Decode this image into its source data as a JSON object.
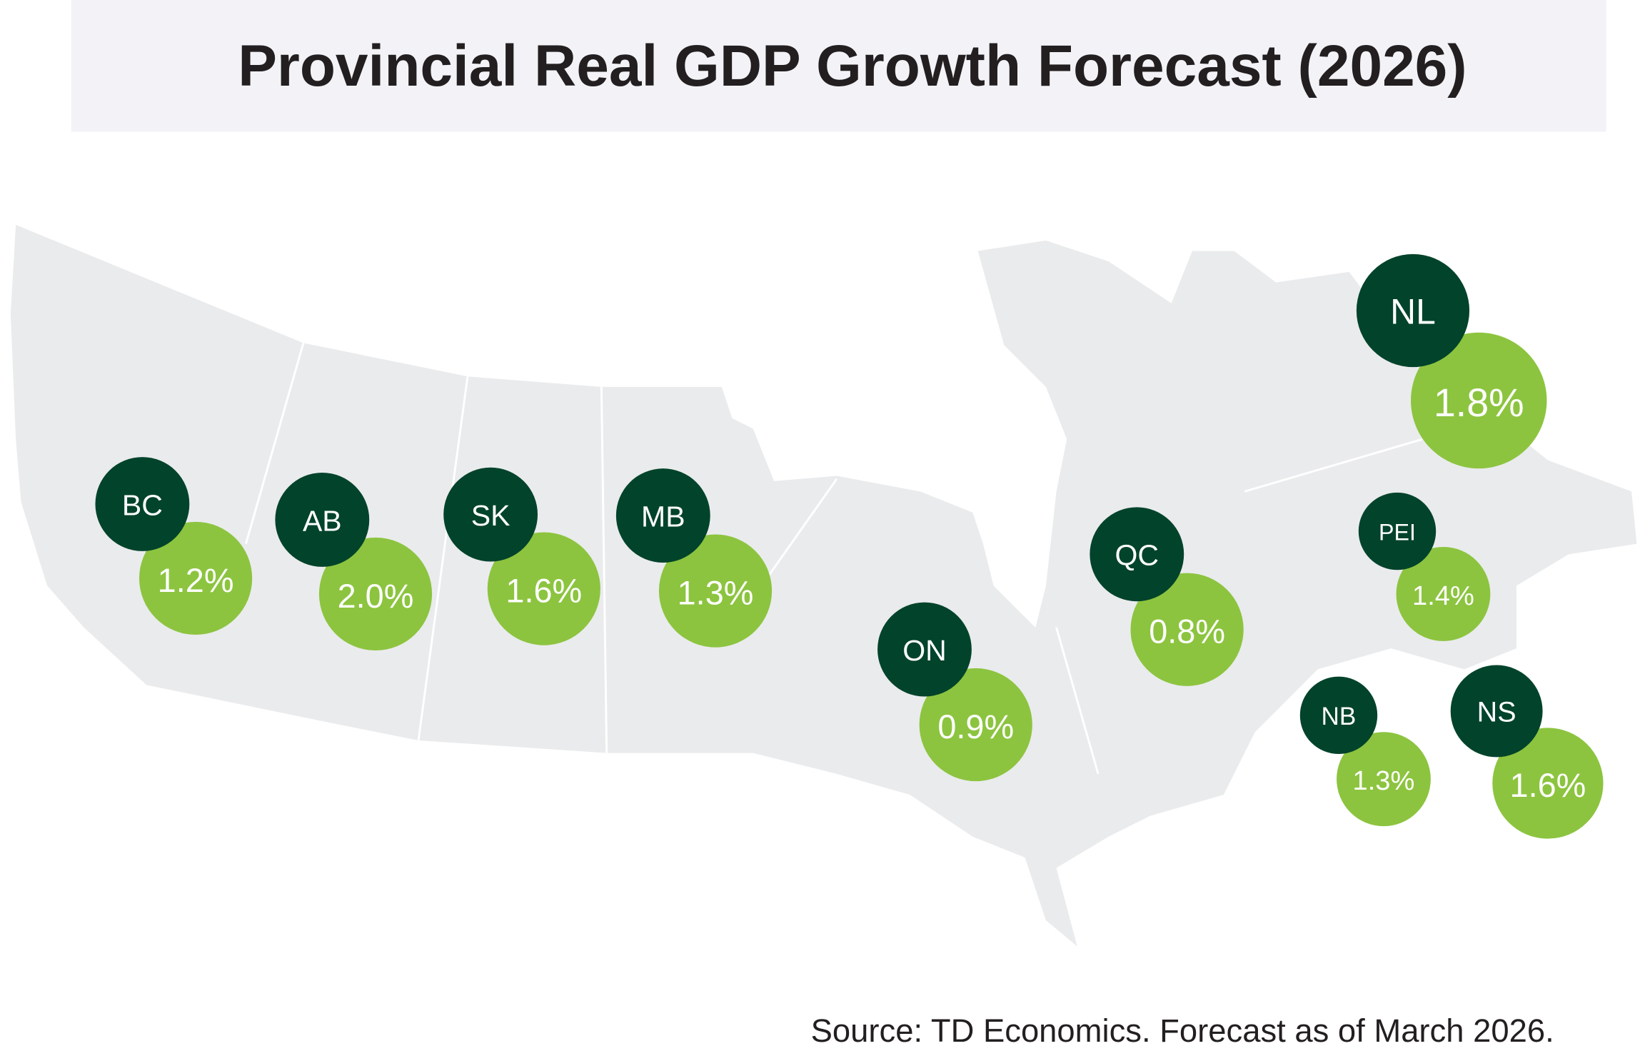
{
  "title": "Provincial Real GDP Growth Forecast (2026)",
  "source": "Source: TD Economics. Forecast as of March 2026.",
  "colors": {
    "province_badge": "#02432B",
    "growth_badge": "#8CC43F",
    "land": "#EAEBED",
    "title_bar": "#F3F3F7"
  },
  "provinces": [
    {
      "code": "BC",
      "growth": "1.2%"
    },
    {
      "code": "AB",
      "growth": "2.0%"
    },
    {
      "code": "SK",
      "growth": "1.6%"
    },
    {
      "code": "MB",
      "growth": "1.3%"
    },
    {
      "code": "ON",
      "growth": "0.9%"
    },
    {
      "code": "QC",
      "growth": "0.8%"
    },
    {
      "code": "NL",
      "growth": "1.8%"
    },
    {
      "code": "PEI",
      "growth": "1.4%"
    },
    {
      "code": "NB",
      "growth": "1.3%"
    },
    {
      "code": "NS",
      "growth": "1.6%"
    }
  ]
}
